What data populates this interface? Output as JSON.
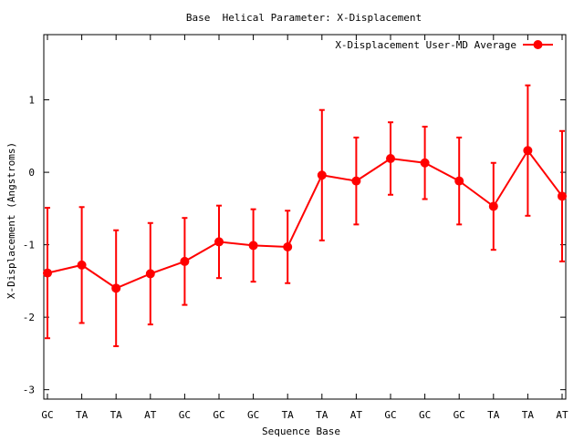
{
  "chart_data": {
    "type": "line",
    "title": "Base  Helical Parameter: X-Displacement",
    "xlabel": "Sequence Base",
    "ylabel": "X-Displacement (Angstroms)",
    "categories": [
      "GC",
      "TA",
      "TA",
      "AT",
      "GC",
      "GC",
      "GC",
      "TA",
      "TA",
      "AT",
      "GC",
      "GC",
      "GC",
      "TA",
      "TA",
      "AT"
    ],
    "ylim": [
      -3.13,
      1.9
    ],
    "yticks": [
      -3,
      -2,
      -1,
      0,
      1
    ],
    "ytick_labels": [
      "-3",
      "-2",
      "-1",
      "0",
      "1"
    ],
    "grid": false,
    "legend_position": "top-right",
    "series": [
      {
        "name": "X-Displacement User-MD Average",
        "color": "#ff0000",
        "marker": "circle",
        "values": [
          -1.39,
          -1.28,
          -1.6,
          -1.4,
          -1.23,
          -0.96,
          -1.01,
          -1.03,
          -0.04,
          -0.12,
          0.19,
          0.13,
          -0.12,
          -0.47,
          0.3,
          -0.33
        ],
        "error": [
          0.9,
          0.8,
          0.8,
          0.7,
          0.6,
          0.5,
          0.5,
          0.5,
          0.9,
          0.6,
          0.5,
          0.5,
          0.6,
          0.6,
          0.9,
          0.9
        ]
      }
    ]
  }
}
